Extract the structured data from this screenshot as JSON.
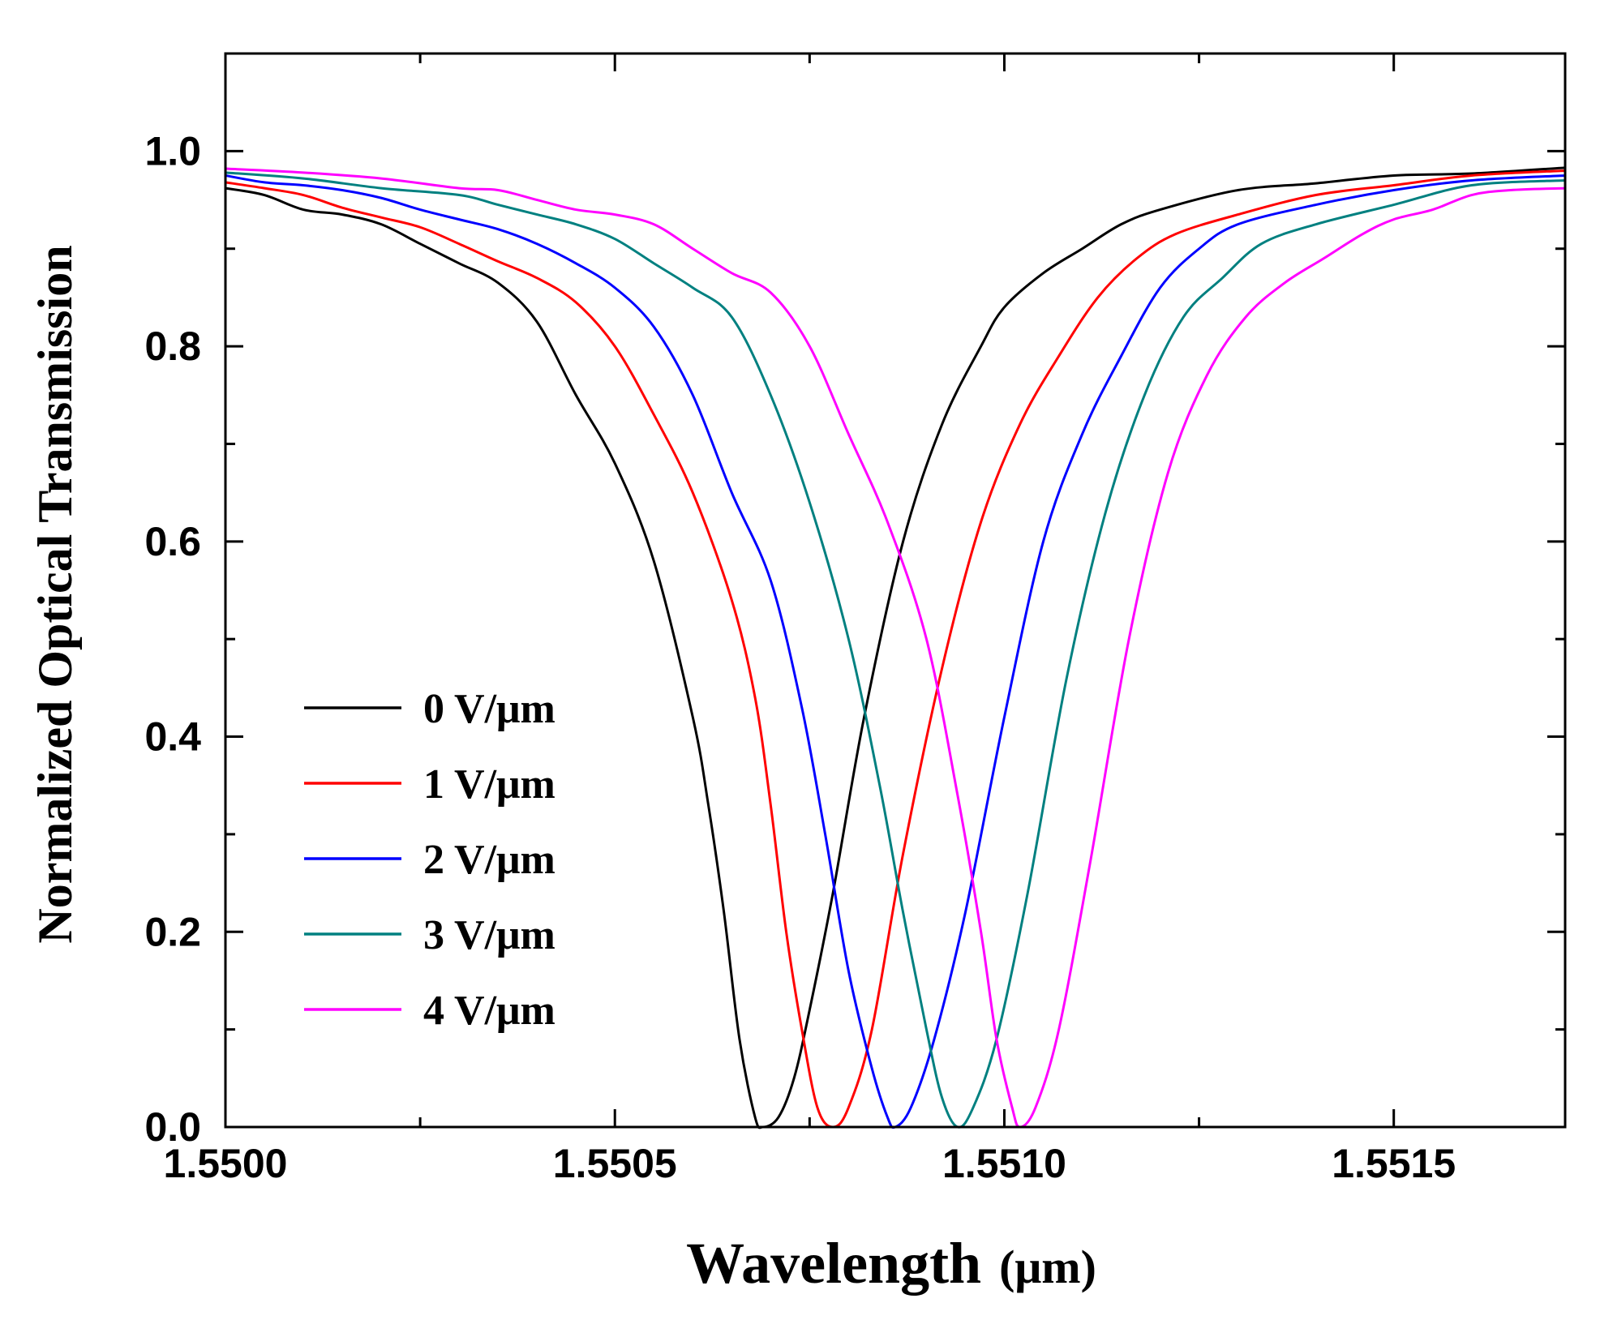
{
  "chart_data": {
    "type": "line",
    "title": "",
    "xlabel": "Wavelength",
    "xlabel_unit": "(μm)",
    "ylabel": "Normalized Optical Transmission",
    "xlim": [
      1.55,
      1.55172
    ],
    "ylim": [
      0.0,
      1.1
    ],
    "x_ticks": [
      1.55,
      1.5505,
      1.551,
      1.5515
    ],
    "x_tick_labels": [
      "1.5500",
      "1.5505",
      "1.5510",
      "1.5515"
    ],
    "y_ticks": [
      0.0,
      0.2,
      0.4,
      0.6,
      0.8,
      1.0
    ],
    "y_tick_labels": [
      "0.0",
      "0.2",
      "0.4",
      "0.6",
      "0.8",
      "1.0"
    ],
    "grid": false,
    "legend_position": "lower-left",
    "series": [
      {
        "name": "0 V/μm",
        "color": "#000000",
        "points": [
          [
            1.55,
            0.962
          ],
          [
            1.55005,
            0.955
          ],
          [
            1.5501,
            0.94
          ],
          [
            1.55015,
            0.935
          ],
          [
            1.5502,
            0.925
          ],
          [
            1.55025,
            0.905
          ],
          [
            1.5503,
            0.885
          ],
          [
            1.55035,
            0.865
          ],
          [
            1.5504,
            0.825
          ],
          [
            1.55045,
            0.75
          ],
          [
            1.5505,
            0.68
          ],
          [
            1.55055,
            0.58
          ],
          [
            1.5506,
            0.42
          ],
          [
            1.55062,
            0.33
          ],
          [
            1.55064,
            0.22
          ],
          [
            1.55066,
            0.09
          ],
          [
            1.55068,
            0.01
          ],
          [
            1.55069,
            0.0
          ],
          [
            1.55071,
            0.01
          ],
          [
            1.55073,
            0.05
          ],
          [
            1.55075,
            0.12
          ],
          [
            1.55078,
            0.24
          ],
          [
            1.55082,
            0.42
          ],
          [
            1.55087,
            0.6
          ],
          [
            1.55092,
            0.72
          ],
          [
            1.55097,
            0.8
          ],
          [
            1.551,
            0.84
          ],
          [
            1.55105,
            0.875
          ],
          [
            1.5511,
            0.9
          ],
          [
            1.55115,
            0.925
          ],
          [
            1.5512,
            0.94
          ],
          [
            1.5513,
            0.96
          ],
          [
            1.5514,
            0.967
          ],
          [
            1.5515,
            0.975
          ],
          [
            1.5516,
            0.977
          ],
          [
            1.55172,
            0.983
          ]
        ]
      },
      {
        "name": "1 V/μm",
        "color": "#ff0000",
        "points": [
          [
            1.55,
            0.968
          ],
          [
            1.55005,
            0.962
          ],
          [
            1.5501,
            0.955
          ],
          [
            1.55015,
            0.942
          ],
          [
            1.5502,
            0.932
          ],
          [
            1.55025,
            0.922
          ],
          [
            1.5503,
            0.905
          ],
          [
            1.55035,
            0.887
          ],
          [
            1.5504,
            0.87
          ],
          [
            1.55045,
            0.845
          ],
          [
            1.5505,
            0.8
          ],
          [
            1.55055,
            0.73
          ],
          [
            1.5506,
            0.65
          ],
          [
            1.55065,
            0.54
          ],
          [
            1.55068,
            0.44
          ],
          [
            1.5507,
            0.33
          ],
          [
            1.55072,
            0.2
          ],
          [
            1.55074,
            0.1
          ],
          [
            1.55076,
            0.02
          ],
          [
            1.55078,
            0.0
          ],
          [
            1.5508,
            0.02
          ],
          [
            1.55083,
            0.1
          ],
          [
            1.55087,
            0.28
          ],
          [
            1.55092,
            0.47
          ],
          [
            1.55097,
            0.62
          ],
          [
            1.55102,
            0.72
          ],
          [
            1.55107,
            0.79
          ],
          [
            1.55112,
            0.85
          ],
          [
            1.55117,
            0.89
          ],
          [
            1.55122,
            0.915
          ],
          [
            1.5513,
            0.935
          ],
          [
            1.5514,
            0.955
          ],
          [
            1.5515,
            0.965
          ],
          [
            1.5516,
            0.975
          ],
          [
            1.55172,
            0.98
          ]
        ]
      },
      {
        "name": "2 V/μm",
        "color": "#0000ff",
        "points": [
          [
            1.55,
            0.975
          ],
          [
            1.55005,
            0.968
          ],
          [
            1.5501,
            0.965
          ],
          [
            1.55015,
            0.96
          ],
          [
            1.5502,
            0.952
          ],
          [
            1.55025,
            0.94
          ],
          [
            1.5503,
            0.93
          ],
          [
            1.55035,
            0.92
          ],
          [
            1.5504,
            0.905
          ],
          [
            1.55045,
            0.885
          ],
          [
            1.5505,
            0.86
          ],
          [
            1.55055,
            0.82
          ],
          [
            1.5506,
            0.75
          ],
          [
            1.55065,
            0.65
          ],
          [
            1.5507,
            0.56
          ],
          [
            1.55074,
            0.43
          ],
          [
            1.55077,
            0.3
          ],
          [
            1.5508,
            0.16
          ],
          [
            1.55083,
            0.06
          ],
          [
            1.55085,
            0.01
          ],
          [
            1.55086,
            0.0
          ],
          [
            1.55088,
            0.02
          ],
          [
            1.55091,
            0.09
          ],
          [
            1.55095,
            0.22
          ],
          [
            1.551,
            0.42
          ],
          [
            1.55105,
            0.6
          ],
          [
            1.5511,
            0.71
          ],
          [
            1.55115,
            0.79
          ],
          [
            1.5512,
            0.86
          ],
          [
            1.55125,
            0.9
          ],
          [
            1.5513,
            0.925
          ],
          [
            1.5514,
            0.945
          ],
          [
            1.5515,
            0.96
          ],
          [
            1.5516,
            0.97
          ],
          [
            1.55172,
            0.975
          ]
        ]
      },
      {
        "name": "3 V/μm",
        "color": "#008080",
        "points": [
          [
            1.55,
            0.978
          ],
          [
            1.5501,
            0.972
          ],
          [
            1.5502,
            0.962
          ],
          [
            1.5503,
            0.955
          ],
          [
            1.55035,
            0.945
          ],
          [
            1.5504,
            0.935
          ],
          [
            1.55045,
            0.925
          ],
          [
            1.5505,
            0.91
          ],
          [
            1.55055,
            0.885
          ],
          [
            1.5506,
            0.86
          ],
          [
            1.55065,
            0.83
          ],
          [
            1.5507,
            0.75
          ],
          [
            1.55075,
            0.64
          ],
          [
            1.5508,
            0.5
          ],
          [
            1.55084,
            0.35
          ],
          [
            1.55087,
            0.22
          ],
          [
            1.5509,
            0.1
          ],
          [
            1.55092,
            0.03
          ],
          [
            1.55094,
            0.0
          ],
          [
            1.55096,
            0.02
          ],
          [
            1.55099,
            0.09
          ],
          [
            1.55103,
            0.24
          ],
          [
            1.55108,
            0.46
          ],
          [
            1.55113,
            0.63
          ],
          [
            1.55118,
            0.75
          ],
          [
            1.55123,
            0.83
          ],
          [
            1.55128,
            0.87
          ],
          [
            1.55133,
            0.905
          ],
          [
            1.5514,
            0.925
          ],
          [
            1.5515,
            0.945
          ],
          [
            1.5516,
            0.965
          ],
          [
            1.55172,
            0.97
          ]
        ]
      },
      {
        "name": "4 V/μm",
        "color": "#ff00ff",
        "points": [
          [
            1.55,
            0.982
          ],
          [
            1.5501,
            0.978
          ],
          [
            1.5502,
            0.972
          ],
          [
            1.5503,
            0.962
          ],
          [
            1.55035,
            0.96
          ],
          [
            1.5504,
            0.95
          ],
          [
            1.55045,
            0.94
          ],
          [
            1.5505,
            0.935
          ],
          [
            1.55055,
            0.925
          ],
          [
            1.5506,
            0.9
          ],
          [
            1.55065,
            0.875
          ],
          [
            1.5507,
            0.855
          ],
          [
            1.55075,
            0.8
          ],
          [
            1.5508,
            0.71
          ],
          [
            1.55085,
            0.62
          ],
          [
            1.5509,
            0.5
          ],
          [
            1.55094,
            0.34
          ],
          [
            1.55097,
            0.2
          ],
          [
            1.55099,
            0.09
          ],
          [
            1.55101,
            0.02
          ],
          [
            1.55102,
            0.0
          ],
          [
            1.55104,
            0.02
          ],
          [
            1.55107,
            0.1
          ],
          [
            1.55111,
            0.27
          ],
          [
            1.55116,
            0.5
          ],
          [
            1.55121,
            0.67
          ],
          [
            1.55126,
            0.77
          ],
          [
            1.55131,
            0.83
          ],
          [
            1.55136,
            0.865
          ],
          [
            1.55141,
            0.89
          ],
          [
            1.55146,
            0.915
          ],
          [
            1.5515,
            0.93
          ],
          [
            1.55155,
            0.94
          ],
          [
            1.5516,
            0.955
          ],
          [
            1.55165,
            0.96
          ],
          [
            1.55172,
            0.962
          ]
        ]
      }
    ]
  }
}
